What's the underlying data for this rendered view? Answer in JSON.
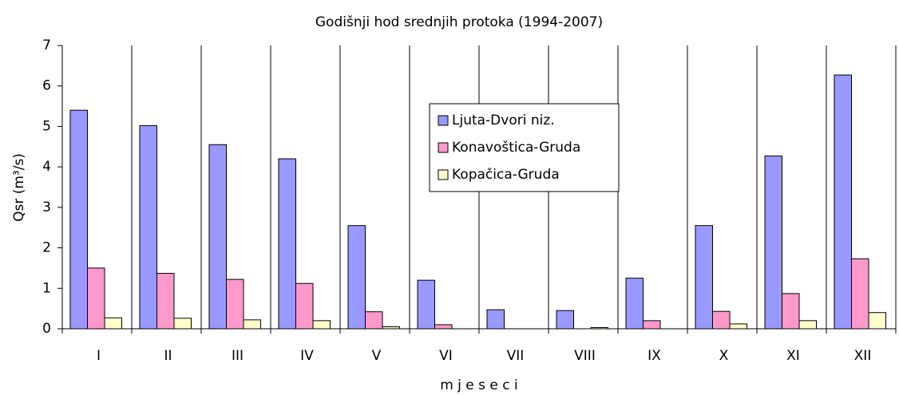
{
  "chart_data": {
    "type": "bar",
    "title": "Godišnji hod srednjih protoka (1994-2007)",
    "ylabel": "Qsr  (m³/s)",
    "xlabel": "m j e s e c i",
    "categories": [
      "I",
      "II",
      "III",
      "IV",
      "V",
      "VI",
      "VII",
      "VIII",
      "IX",
      "X",
      "XI",
      "XII"
    ],
    "series": [
      {
        "name": "Ljuta-Dvori niz.",
        "color": "#9999ff",
        "values": [
          5.4,
          5.02,
          4.55,
          4.2,
          2.55,
          1.2,
          0.47,
          0.45,
          1.25,
          2.55,
          4.27,
          6.27
        ]
      },
      {
        "name": "Konavoštica-Gruda",
        "color": "#ff99cc",
        "values": [
          1.5,
          1.37,
          1.22,
          1.12,
          0.42,
          0.1,
          0,
          0,
          0.2,
          0.43,
          0.87,
          1.73
        ]
      },
      {
        "name": "Kopačica-Gruda",
        "color": "#ffffcc",
        "values": [
          0.27,
          0.26,
          0.22,
          0.2,
          0.05,
          0,
          0,
          0.03,
          0,
          0.12,
          0.2,
          0.4
        ]
      }
    ],
    "ylim": [
      0,
      7
    ],
    "yticks": [
      0,
      1,
      2,
      3,
      4,
      5,
      6,
      7
    ],
    "xgrid": true
  }
}
